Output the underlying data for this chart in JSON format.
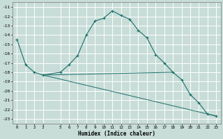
{
  "xlabel": "Humidex (Indice chaleur)",
  "bg_color": "#c8ddd8",
  "grid_color": "#ffffff",
  "line_color": "#1a6e6a",
  "xlim": [
    -0.5,
    23.5
  ],
  "ylim": [
    -23.5,
    -10.5
  ],
  "xtick_vals": [
    0,
    1,
    2,
    3,
    5,
    6,
    7,
    8,
    9,
    10,
    11,
    12,
    13,
    14,
    15,
    16,
    17,
    18,
    19,
    20,
    21,
    22,
    23
  ],
  "xtick_labels": [
    "0",
    "1",
    "2",
    "3",
    "5",
    "6",
    "7",
    "8",
    "9",
    "10",
    "11",
    "12",
    "13",
    "14",
    "15",
    "16",
    "17",
    "18",
    "19",
    "20",
    "21",
    "22",
    "23"
  ],
  "ytick_vals": [
    -23,
    -22,
    -21,
    -20,
    -19,
    -18,
    -17,
    -16,
    -15,
    -14,
    -13,
    -12,
    -11
  ],
  "ytick_labels": [
    "-23",
    "-22",
    "-21",
    "-20",
    "-19",
    "-18",
    "-17",
    "-16",
    "-15",
    "-14",
    "-13",
    "-12",
    "-11"
  ],
  "curve1_x": [
    0,
    1,
    2,
    3,
    5,
    6,
    7,
    8,
    9,
    10,
    11,
    12,
    13,
    14,
    15,
    16,
    17,
    18,
    19,
    20,
    21,
    22,
    23
  ],
  "curve1_y": [
    -14.5,
    -17.2,
    -18.0,
    -18.3,
    -18.0,
    -17.2,
    -16.2,
    -14.0,
    -12.5,
    -12.2,
    -11.4,
    -11.9,
    -12.3,
    -13.5,
    -14.3,
    -16.1,
    -17.0,
    -18.0,
    -18.8,
    -20.4,
    -21.3,
    -22.5,
    -22.7
  ],
  "curve2_x": [
    3,
    18
  ],
  "curve2_y": [
    -18.3,
    -18.0
  ],
  "curve3_x": [
    3,
    23
  ],
  "curve3_y": [
    -18.3,
    -22.7
  ]
}
